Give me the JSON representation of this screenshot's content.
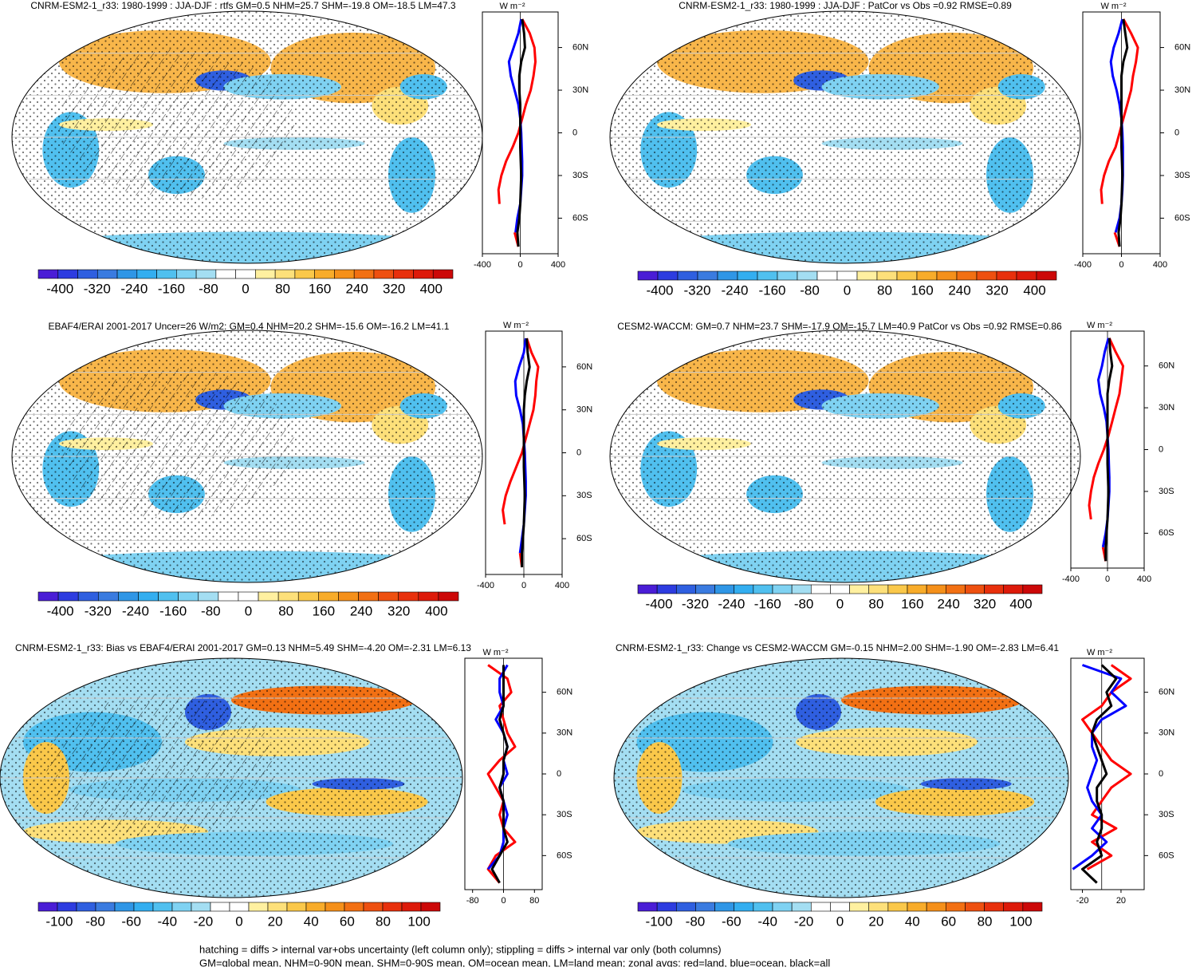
{
  "chart_data": [
    {
      "type": "map-zonal",
      "title": "CNRM-ESM2-1_r33: 1980-1999 : JJA-DJF : rtfs GM=0.5 NHM=25.7 SHM=-19.8 OM=-18.5 LM=47.3",
      "colorbar_ticks": [
        -400,
        -320,
        -240,
        -160,
        -80,
        0,
        80,
        160,
        240,
        320,
        400
      ],
      "xlim": [
        -400,
        400
      ],
      "xticks": [
        -400,
        0,
        400
      ],
      "series": [
        {
          "color": "#ff0000",
          "values": [
            20,
            100,
            150,
            160,
            140,
            110,
            60,
            20,
            -20,
            -80,
            -150,
            -200,
            -230,
            -220,
            null,
            -60,
            -20
          ]
        },
        {
          "color": "#0000ff",
          "values": [
            10,
            -20,
            -70,
            -120,
            -100,
            -60,
            -20,
            0,
            10,
            15,
            20,
            20,
            10,
            0,
            -30,
            -50,
            null
          ]
        },
        {
          "color": "#000000",
          "values": [
            20,
            40,
            50,
            10,
            -10,
            -10,
            0,
            0,
            0,
            0,
            5,
            10,
            5,
            0,
            -10,
            -30,
            -20
          ]
        }
      ]
    },
    {
      "type": "map-zonal",
      "title": "CNRM-ESM2-1_r33: 1980-1999 : JJA-DJF : PatCor vs Obs =0.92 RMSE=0.89",
      "colorbar_ticks": [
        -400,
        -320,
        -240,
        -160,
        -80,
        0,
        80,
        160,
        240,
        320,
        400
      ],
      "xlim": [
        -400,
        400
      ],
      "xticks": [
        -400,
        0,
        400
      ],
      "series": [
        {
          "color": "#ff0000",
          "values": [
            20,
            100,
            170,
            150,
            120,
            100,
            60,
            20,
            -20,
            -60,
            -130,
            -180,
            -210,
            -200,
            null,
            -70,
            -20
          ]
        },
        {
          "color": "#0000ff",
          "values": [
            10,
            -30,
            -80,
            -110,
            -90,
            -50,
            -20,
            0,
            10,
            15,
            15,
            15,
            10,
            0,
            -20,
            -60,
            null
          ]
        },
        {
          "color": "#000000",
          "values": [
            20,
            40,
            60,
            20,
            0,
            0,
            0,
            0,
            0,
            0,
            5,
            10,
            5,
            0,
            -10,
            -30,
            -20
          ]
        }
      ]
    },
    {
      "type": "map-zonal",
      "title": "EBAF4/ERAI 2001-2017 Uncer=26 W/m2: GM=0.4 NHM=20.2 SHM=-15.6 OM=-16.2 LM=41.1",
      "colorbar_ticks": [
        -400,
        -320,
        -240,
        -160,
        -80,
        0,
        80,
        160,
        240,
        320,
        400
      ],
      "xlim": [
        -400,
        400
      ],
      "xticks": [
        -400,
        0,
        400
      ],
      "series": [
        {
          "color": "#ff0000",
          "values": [
            30,
            80,
            150,
            130,
            120,
            100,
            60,
            20,
            -20,
            -80,
            -140,
            -190,
            -220,
            -200,
            null,
            -40,
            -20
          ]
        },
        {
          "color": "#0000ff",
          "values": [
            20,
            0,
            -50,
            -90,
            -80,
            -40,
            -10,
            0,
            10,
            15,
            20,
            20,
            10,
            0,
            -20,
            -40,
            null
          ]
        },
        {
          "color": "#000000",
          "values": [
            30,
            40,
            60,
            30,
            10,
            0,
            0,
            0,
            0,
            0,
            5,
            10,
            5,
            0,
            -10,
            -20,
            -20
          ]
        }
      ]
    },
    {
      "type": "map-zonal",
      "title": "CESM2-WACCM: GM=0.7 NHM=23.7 SHM=-17.9 OM=-15.7 LM=40.9 PatCor vs Obs =0.92 RMSE=0.86",
      "colorbar_ticks": [
        -400,
        -320,
        -240,
        -160,
        -80,
        0,
        80,
        160,
        240,
        320,
        400
      ],
      "xlim": [
        -400,
        400
      ],
      "xticks": [
        -400,
        0,
        400
      ],
      "series": [
        {
          "color": "#ff0000",
          "values": [
            20,
            90,
            170,
            150,
            130,
            90,
            50,
            10,
            -40,
            -100,
            -150,
            -180,
            -200,
            -180,
            null,
            -50,
            -20
          ]
        },
        {
          "color": "#0000ff",
          "values": [
            10,
            -30,
            -60,
            -100,
            -80,
            -40,
            -10,
            0,
            10,
            15,
            20,
            20,
            10,
            0,
            -20,
            -50,
            null
          ]
        },
        {
          "color": "#000000",
          "values": [
            20,
            30,
            50,
            20,
            0,
            0,
            0,
            0,
            0,
            0,
            5,
            10,
            5,
            0,
            -10,
            -20,
            -20
          ]
        }
      ]
    },
    {
      "type": "map-zonal",
      "title": "CNRM-ESM2-1_r33: Bias vs EBAF4/ERAI 2001-2017 GM=0.13 NHM=5.49 SHM=-4.20 OM=-2.31 LM=6.13",
      "colorbar_ticks": [
        -100,
        -80,
        -60,
        -40,
        -20,
        0,
        20,
        40,
        60,
        80,
        100
      ],
      "xlim": [
        -100,
        100
      ],
      "xticks": [
        -80,
        0,
        80
      ],
      "series": [
        {
          "color": "#ff0000",
          "values": [
            -40,
            10,
            20,
            -10,
            0,
            10,
            30,
            -10,
            -40,
            -20,
            0,
            -10,
            0,
            30,
            -20,
            -40,
            -10
          ]
        },
        {
          "color": "#0000ff",
          "values": [
            10,
            -10,
            -10,
            0,
            -20,
            0,
            10,
            0,
            10,
            -10,
            0,
            10,
            0,
            0,
            -10,
            -40,
            null
          ]
        },
        {
          "color": "#000000",
          "values": [
            0,
            0,
            0,
            0,
            -10,
            0,
            10,
            0,
            0,
            -10,
            0,
            0,
            0,
            10,
            -10,
            -30,
            -10
          ]
        }
      ]
    },
    {
      "type": "map-zonal",
      "title": "CNRM-ESM2-1_r33: Change vs CESM2-WACCM GM=-0.15 NHM=2.00 SHM=-1.90 OM=-2.83 LM=6.41",
      "colorbar_ticks": [
        -100,
        -80,
        -60,
        -40,
        -20,
        0,
        20,
        40,
        60,
        80,
        100
      ],
      "xlim": [
        -32,
        44
      ],
      "xticks": [
        -20,
        20
      ],
      "series": [
        {
          "color": "#ff0000",
          "values": [
            10,
            30,
            10,
            0,
            -20,
            -10,
            0,
            10,
            30,
            10,
            0,
            -10,
            15,
            -10,
            10,
            -15,
            null
          ]
        },
        {
          "color": "#0000ff",
          "values": [
            -20,
            20,
            10,
            25,
            0,
            -10,
            -10,
            -5,
            -10,
            -15,
            -10,
            0,
            -10,
            5,
            -10,
            -30,
            null
          ]
        },
        {
          "color": "#000000",
          "values": [
            0,
            15,
            5,
            10,
            -5,
            -10,
            -5,
            0,
            5,
            -5,
            -5,
            0,
            0,
            -5,
            0,
            -20,
            -5
          ]
        }
      ]
    }
  ],
  "zonal_lat": [
    80,
    70,
    60,
    50,
    40,
    30,
    20,
    10,
    0,
    -10,
    -20,
    -30,
    -40,
    -50,
    -60,
    -70,
    -80
  ],
  "zonal_ylim": [
    -85,
    85
  ],
  "zonal_yticks": [
    {
      "value": 60,
      "label": "60N"
    },
    {
      "value": 30,
      "label": "30N"
    },
    0,
    {
      "value": -30,
      "label": "30S"
    },
    {
      "value": -60,
      "label": "60S"
    }
  ],
  "unit": "W m⁻²",
  "colorbar_colors": [
    "#4a1dd6",
    "#2d3ce0",
    "#2f5fe0",
    "#3a7be0",
    "#2f96e6",
    "#33aef0",
    "#50c0ef",
    "#7fd2f2",
    "#a4def2",
    "#ffffff",
    "#ffffff",
    "#fff0a0",
    "#fde07a",
    "#fac84a",
    "#f8ac2a",
    "#f5901a",
    "#f27013",
    "#ee5010",
    "#e8300c",
    "#dd1a0a",
    "#cc0808"
  ],
  "footnotes": [
    "hatching = diffs > internal var+obs uncertainty (left column only); stippling = diffs > internal var only (both columns)",
    "GM=global mean, NHM=0-90N mean, SHM=0-90S mean, OM=ocean mean, LM=land mean; zonal avgs: red=land, blue=ocean, black=all"
  ]
}
